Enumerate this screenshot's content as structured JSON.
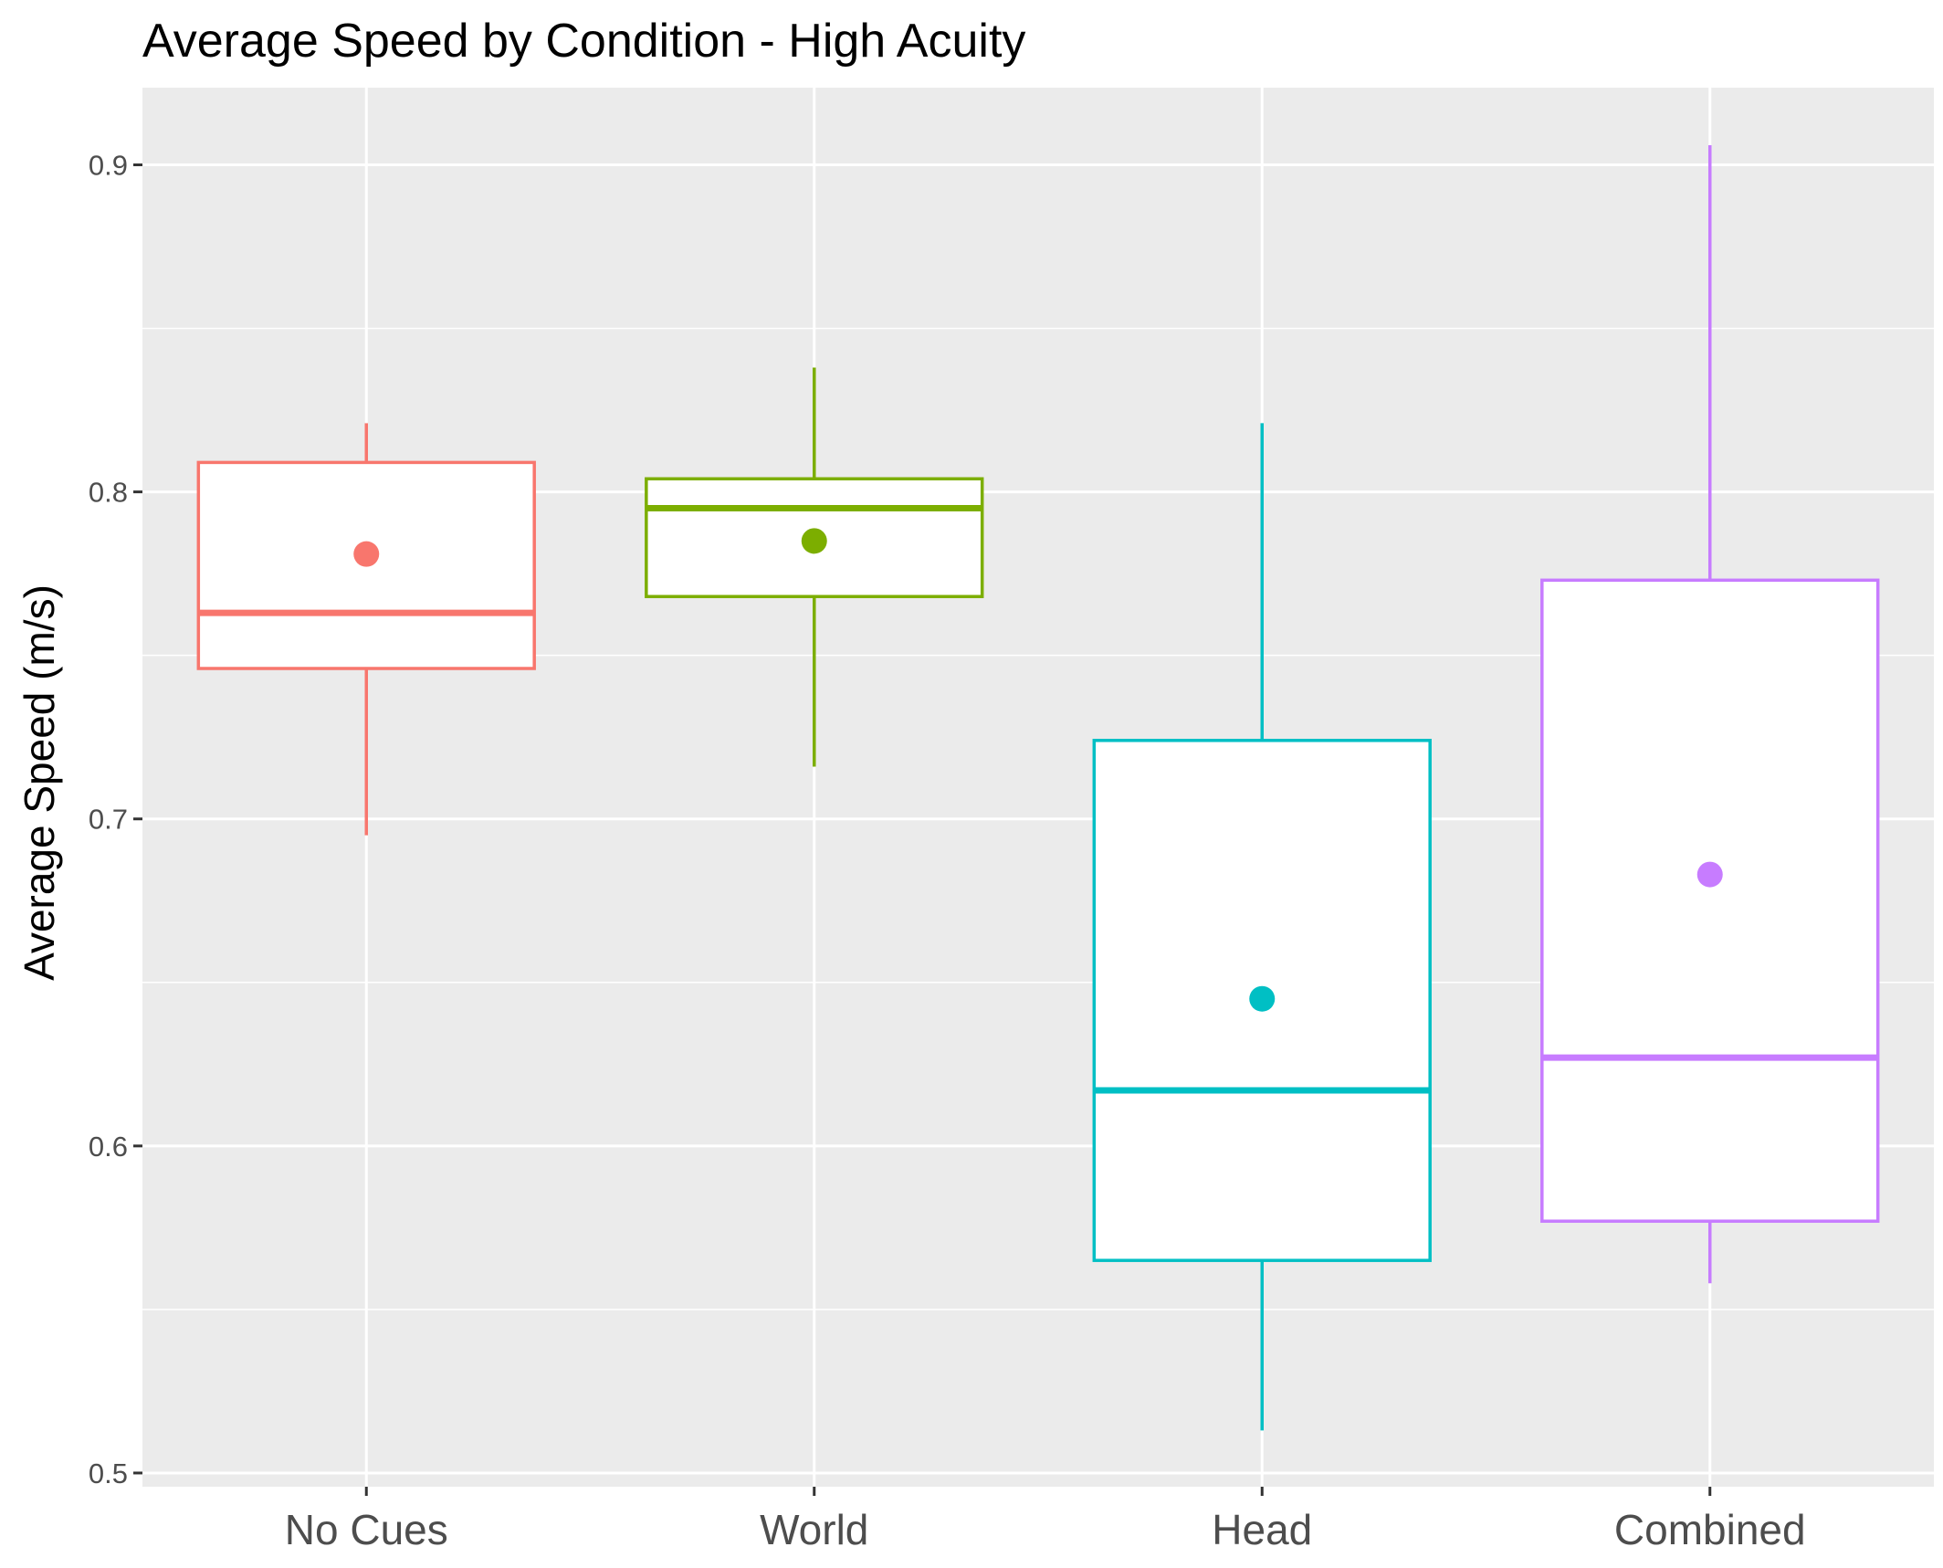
{
  "chart_data": {
    "type": "box",
    "title": "Average Speed by Condition - High Acuity",
    "xlabel": "",
    "ylabel": "Average Speed (m/s)",
    "ylim": [
      0.4958,
      0.9236
    ],
    "yticks": [
      0.5,
      0.6,
      0.7,
      0.8,
      0.9
    ],
    "ytick_labels": [
      "0.5",
      "0.6",
      "0.7",
      "0.8",
      "0.9"
    ],
    "grid": true,
    "legend": "none",
    "categories": [
      "No Cues",
      "World",
      "Head",
      "Combined"
    ],
    "boxes": [
      {
        "category": "No Cues",
        "min": 0.695,
        "q1": 0.746,
        "median": 0.763,
        "q3": 0.809,
        "max": 0.821,
        "mean": 0.781,
        "color": "#F8766D"
      },
      {
        "category": "World",
        "min": 0.716,
        "q1": 0.768,
        "median": 0.795,
        "q3": 0.804,
        "max": 0.838,
        "mean": 0.785,
        "color": "#7CAE00"
      },
      {
        "category": "Head",
        "min": 0.513,
        "q1": 0.565,
        "median": 0.617,
        "q3": 0.724,
        "max": 0.821,
        "mean": 0.645,
        "color": "#00BFC4"
      },
      {
        "category": "Combined",
        "min": 0.558,
        "q1": 0.577,
        "median": 0.627,
        "q3": 0.773,
        "max": 0.906,
        "mean": 0.683,
        "color": "#C77CFF"
      }
    ],
    "panel_background": "#EBEBEB",
    "grid_color": "#FFFFFF"
  }
}
